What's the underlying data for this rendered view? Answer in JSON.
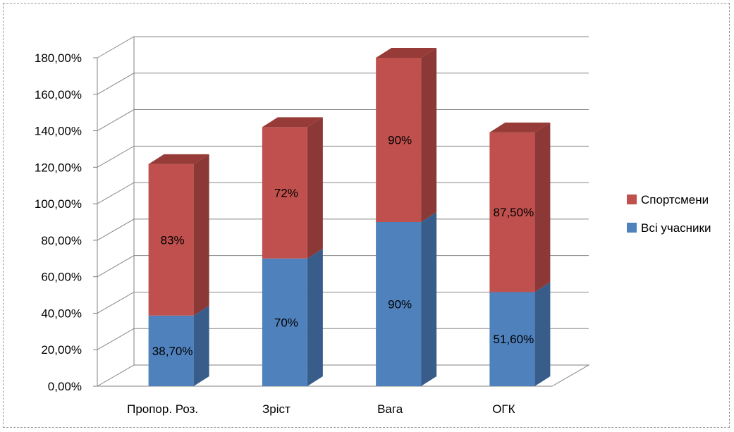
{
  "chart_data": {
    "type": "bar",
    "stacked": true,
    "style": "3d-column",
    "categories": [
      "Пропор. Роз.",
      "Зріст",
      "Вага",
      "ОГК"
    ],
    "series": [
      {
        "name": "Всі учасники",
        "values": [
          38.7,
          70,
          90,
          51.6
        ],
        "labels": [
          "38,70%",
          "70%",
          "90%",
          "51,60%"
        ],
        "color": "#4F81BD",
        "side_color": "#385D8A",
        "top_color": "#3A6396"
      },
      {
        "name": "Спортсмени",
        "values": [
          83,
          72,
          90,
          87.5
        ],
        "labels": [
          "83%",
          "72%",
          "90%",
          "87,50%"
        ],
        "color": "#C0504D",
        "side_color": "#8C3836",
        "top_color": "#963B38"
      }
    ],
    "ylim": [
      0,
      180
    ],
    "yticks": [
      "0,00%",
      "20,00%",
      "40,00%",
      "60,00%",
      "80,00%",
      "100,00%",
      "120,00%",
      "140,00%",
      "160,00%",
      "180,00%"
    ],
    "ytick_values": [
      0,
      20,
      40,
      60,
      80,
      100,
      120,
      140,
      160,
      180
    ],
    "grid": true,
    "legend_position": "right"
  }
}
